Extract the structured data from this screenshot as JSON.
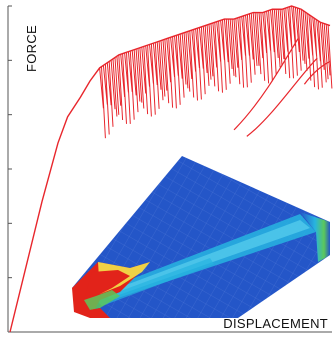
{
  "chart_data": {
    "type": "line",
    "title": "",
    "xlabel": "DISPLACEMENT",
    "ylabel": "FORCE",
    "xlim": [
      0,
      1
    ],
    "ylim": [
      0,
      1
    ],
    "grid": false,
    "legend": "none",
    "series": [
      {
        "color": "#e8262c",
        "x": [
          0.0,
          0.05,
          0.1,
          0.15,
          0.18,
          0.22,
          0.25,
          0.28,
          0.31,
          0.34,
          0.37,
          0.4,
          0.43,
          0.46,
          0.49,
          0.52,
          0.55,
          0.58,
          0.61,
          0.64,
          0.67,
          0.7,
          0.73,
          0.76,
          0.79,
          0.82,
          0.85,
          0.88,
          0.91,
          0.94,
          0.97,
          1.0
        ],
        "y": [
          0.0,
          0.2,
          0.4,
          0.58,
          0.66,
          0.72,
          0.77,
          0.81,
          0.83,
          0.85,
          0.86,
          0.87,
          0.88,
          0.89,
          0.9,
          0.91,
          0.92,
          0.93,
          0.94,
          0.95,
          0.96,
          0.96,
          0.97,
          0.98,
          0.98,
          0.99,
          0.99,
          1.0,
          0.99,
          0.97,
          0.95,
          0.94
        ]
      }
    ]
  },
  "colors": {
    "curve": "#e8262c",
    "mesh_blue": "#2456c8",
    "mesh_cyan": "#27b4e0",
    "mesh_green": "#5cc85a",
    "mesh_yellow": "#f2e44a",
    "mesh_red": "#e2231a"
  }
}
